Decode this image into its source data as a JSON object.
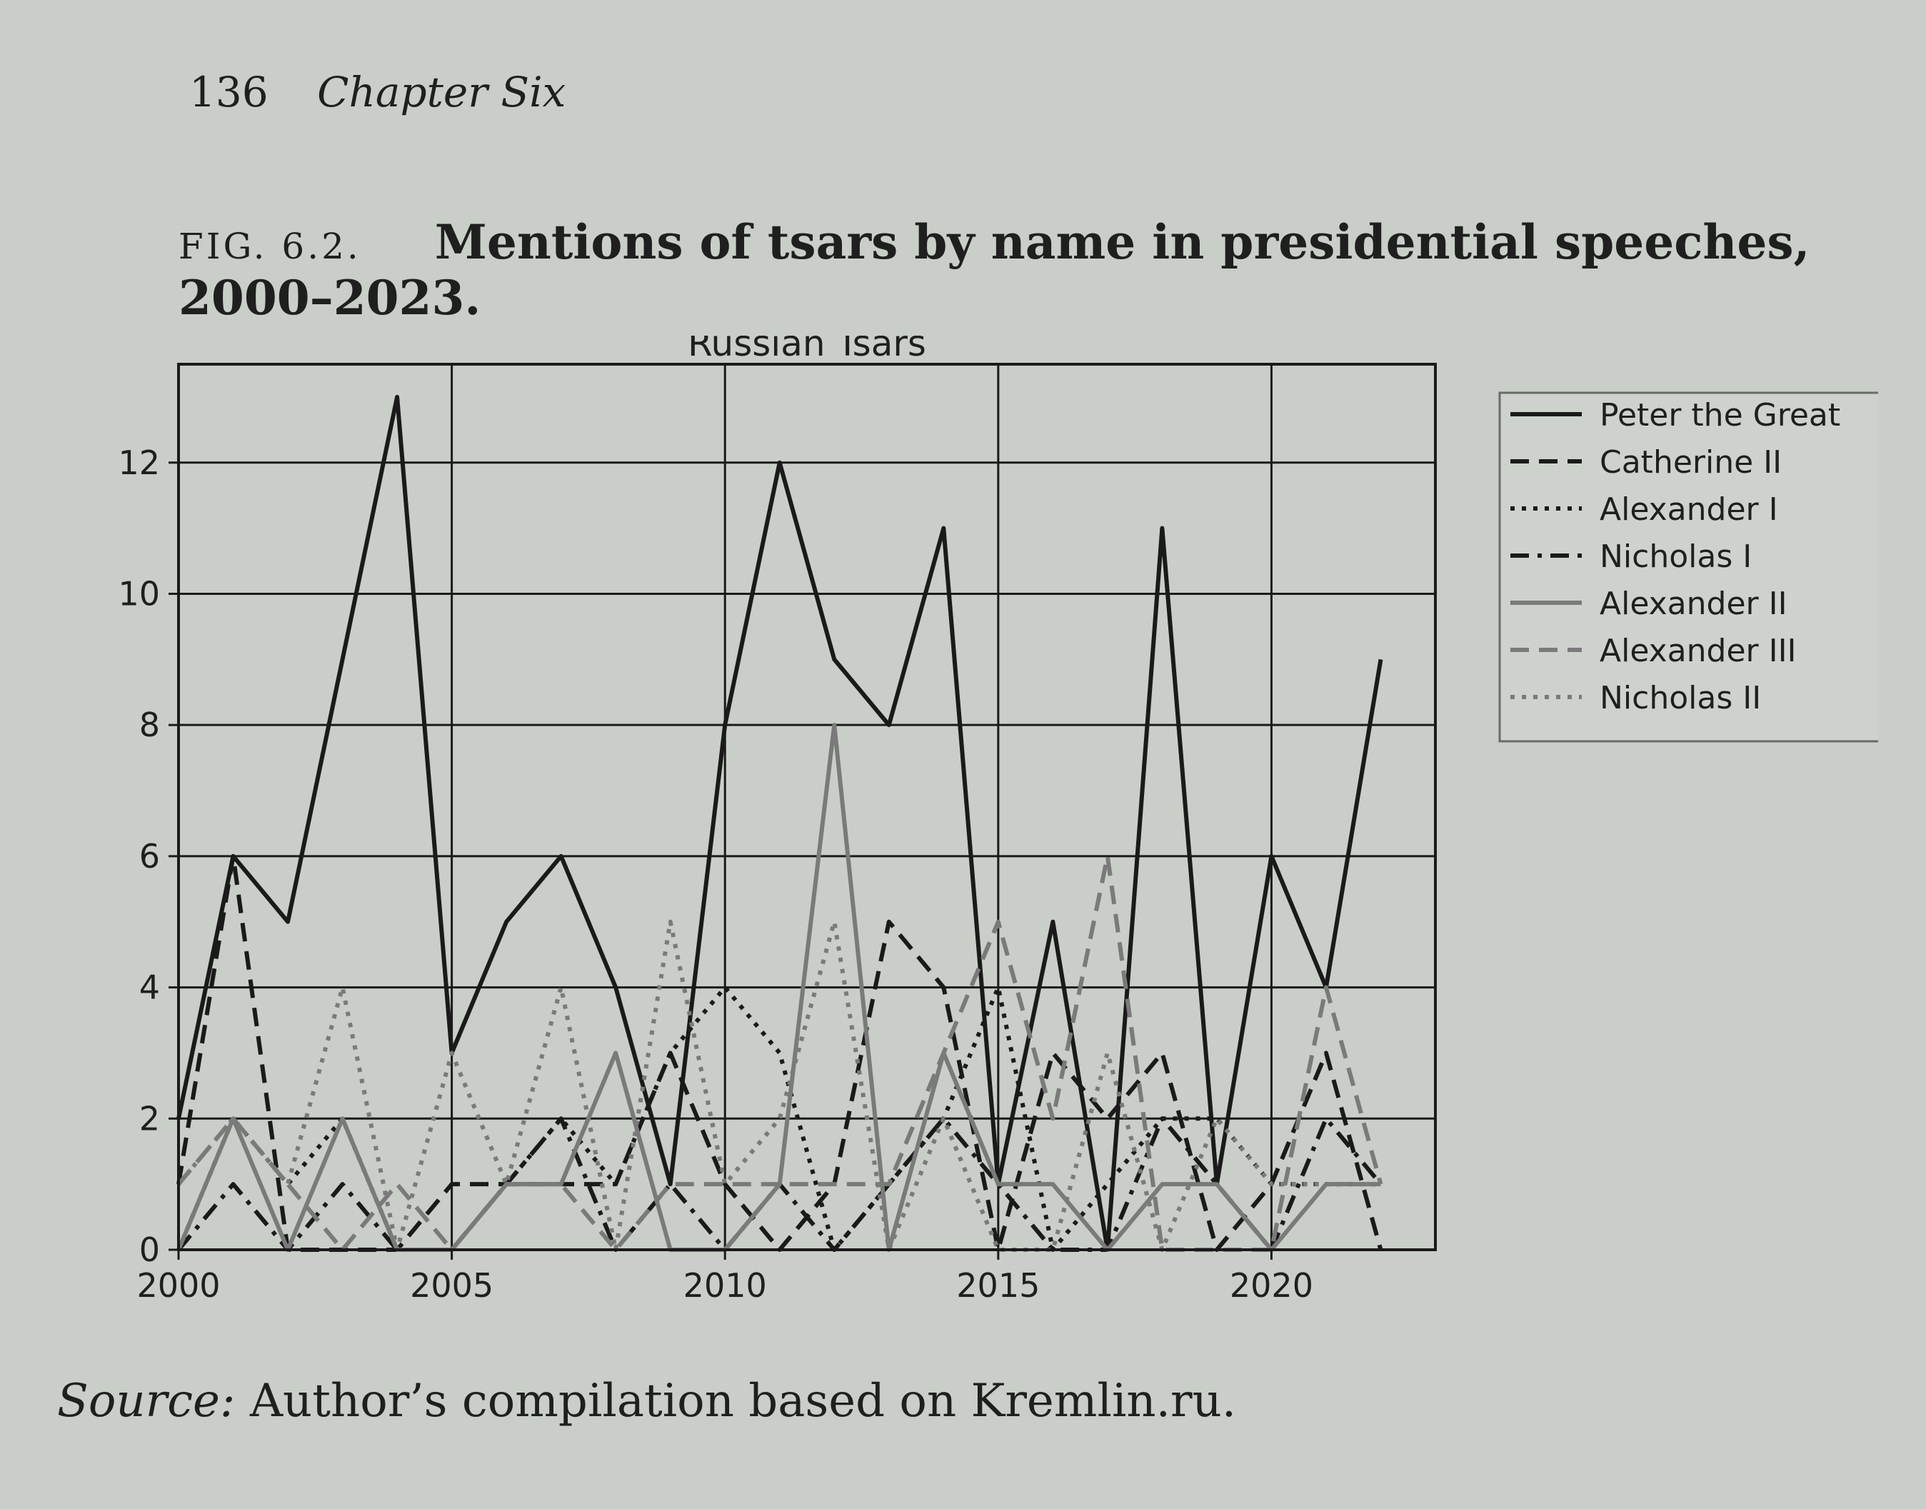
{
  "page": {
    "number": "136",
    "chapter": "Chapter Six"
  },
  "figure": {
    "label": "FIG. 6.2.",
    "caption": "Mentions of tsars by name in presidential speeches, 2000–2023.",
    "source_label": "Source:",
    "source_text": "Author’s compilation based on Kremlin.ru."
  },
  "chart_data": {
    "type": "line",
    "title": "Russian Tsars",
    "xlabel": "",
    "ylabel": "",
    "xlim": [
      2000,
      2023
    ],
    "ylim": [
      0,
      13.5
    ],
    "xticks": [
      2000,
      2005,
      2010,
      2015,
      2020
    ],
    "yticks": [
      0,
      2,
      4,
      6,
      8,
      10,
      12
    ],
    "grid": true,
    "legend_position": "outside-right",
    "x": [
      2000,
      2001,
      2002,
      2003,
      2004,
      2005,
      2006,
      2007,
      2008,
      2009,
      2010,
      2011,
      2012,
      2013,
      2014,
      2015,
      2016,
      2017,
      2018,
      2019,
      2020,
      2021,
      2022
    ],
    "series": [
      {
        "name": "Peter the Great",
        "style": "solid",
        "color": "#1a1a1a",
        "values": [
          2,
          6,
          5,
          9,
          13,
          3,
          5,
          6,
          4,
          1,
          8,
          12,
          9,
          8,
          11,
          1,
          5,
          0,
          11,
          1,
          6,
          4,
          9
        ]
      },
      {
        "name": "Catherine II",
        "style": "dashed",
        "color": "#1a1a1a",
        "values": [
          1,
          6,
          0,
          0,
          0,
          1,
          1,
          1,
          1,
          3,
          1,
          0,
          1,
          5,
          4,
          0,
          3,
          2,
          3,
          0,
          1,
          3,
          0
        ]
      },
      {
        "name": "Alexander I",
        "style": "dotted",
        "color": "#1a1a1a",
        "values": [
          0,
          2,
          1,
          2,
          0,
          0,
          1,
          2,
          1,
          3,
          4,
          3,
          0,
          1,
          2,
          4,
          0,
          1,
          2,
          2,
          1,
          1,
          1
        ]
      },
      {
        "name": "Nicholas I",
        "style": "dashdot",
        "color": "#1a1a1a",
        "values": [
          0,
          1,
          0,
          1,
          0,
          0,
          1,
          2,
          0,
          1,
          0,
          1,
          0,
          1,
          2,
          1,
          0,
          0,
          2,
          1,
          0,
          2,
          1
        ]
      },
      {
        "name": "Alexander II",
        "style": "solid",
        "color": "#7a7a7a",
        "values": [
          0,
          2,
          0,
          2,
          0,
          0,
          1,
          1,
          3,
          0,
          0,
          1,
          8,
          0,
          3,
          1,
          1,
          0,
          1,
          1,
          0,
          1,
          1
        ]
      },
      {
        "name": "Alexander III",
        "style": "dashed",
        "color": "#7a7a7a",
        "values": [
          1,
          2,
          1,
          0,
          1,
          0,
          1,
          1,
          0,
          1,
          1,
          1,
          1,
          1,
          3,
          5,
          2,
          6,
          0,
          0,
          0,
          4,
          1
        ]
      },
      {
        "name": "Nicholas II",
        "style": "dotted",
        "color": "#7a7a7a",
        "values": [
          1,
          2,
          1,
          4,
          0,
          3,
          1,
          4,
          0,
          5,
          1,
          2,
          5,
          0,
          2,
          0,
          0,
          3,
          0,
          2,
          1,
          1,
          1
        ]
      }
    ]
  }
}
